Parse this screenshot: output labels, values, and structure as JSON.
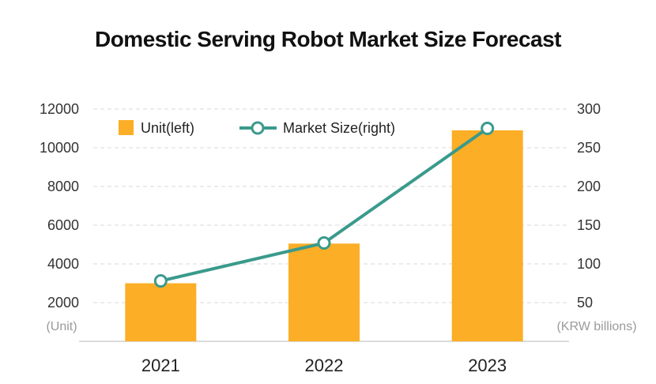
{
  "colors": {
    "bar": "#FBAE26",
    "line": "#3A9A8C",
    "grid": "#d9d9d9",
    "axis": "#cfcfcf"
  },
  "chart_data": {
    "type": "bar",
    "title": "Domestic Serving Robot Market Size Forecast",
    "categories": [
      "2021",
      "2022",
      "2023"
    ],
    "series": [
      {
        "name": "Unit(left)",
        "type": "bar",
        "axis": "left",
        "values": [
          3000,
          5050,
          10900
        ]
      },
      {
        "name": "Market Size(right)",
        "type": "line",
        "axis": "right",
        "values": [
          78,
          127,
          275
        ]
      }
    ],
    "y_left": {
      "ticks": [
        2000,
        4000,
        6000,
        8000,
        10000,
        12000
      ],
      "unit_label": "(Unit)",
      "ylim": [
        0,
        12000
      ]
    },
    "y_right": {
      "ticks": [
        50,
        100,
        150,
        200,
        250,
        300
      ],
      "unit_label": "(KRW billions)",
      "ylim": [
        0,
        300
      ]
    },
    "grid": true,
    "legend_position": "top-left"
  }
}
